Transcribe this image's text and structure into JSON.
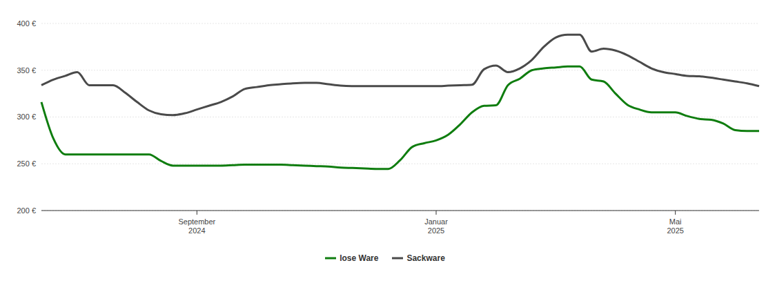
{
  "chart_data": {
    "type": "line",
    "categories": [
      null,
      null,
      null,
      null,
      null,
      null,
      null,
      null,
      null,
      null,
      null,
      null,
      null,
      "September 2024",
      null,
      null,
      null,
      null,
      null,
      null,
      null,
      null,
      null,
      null,
      null,
      null,
      null,
      null,
      null,
      null,
      null,
      null,
      null,
      "Januar 2025",
      null,
      null,
      null,
      null,
      null,
      null,
      null,
      null,
      null,
      null,
      null,
      null,
      null,
      null,
      null,
      null,
      null,
      null,
      null,
      "Mai 2025",
      null,
      null,
      null,
      null,
      null,
      null,
      null
    ],
    "series": [
      {
        "name": "lose Ware",
        "color": "#0f7d0f",
        "values": [
          316,
          277,
          260,
          260,
          260,
          260,
          260,
          260,
          260,
          260,
          253,
          248,
          248,
          248,
          248,
          248,
          248.5,
          249,
          249,
          249,
          249,
          248.5,
          248,
          247.5,
          247,
          246,
          245.5,
          245,
          244.5,
          244.5,
          254,
          268,
          272,
          275,
          281,
          292,
          305,
          312,
          312.5,
          334,
          341,
          350,
          352,
          353,
          354,
          354,
          340,
          338,
          325,
          313,
          308,
          305,
          305,
          305,
          301,
          298,
          297,
          293,
          286,
          285,
          285
        ]
      },
      {
        "name": "Sackware",
        "color": "#4a4a4a",
        "values": [
          334,
          340,
          344,
          348,
          334,
          334,
          334,
          326,
          316,
          307,
          303,
          302,
          304,
          308,
          312,
          316,
          322,
          330,
          332,
          334,
          335,
          336,
          336.5,
          336.5,
          335,
          333.5,
          333,
          333,
          333,
          333,
          333,
          333,
          333,
          333,
          333.5,
          334,
          334.5,
          351,
          355,
          348,
          352,
          361,
          375,
          385,
          388,
          388,
          370,
          373,
          371,
          366,
          359,
          352,
          348,
          346,
          344,
          343.5,
          342,
          340,
          338,
          336,
          333
        ]
      }
    ],
    "ylim": [
      200,
      400
    ],
    "yticks": [
      {
        "value": 200,
        "label": "200 €"
      },
      {
        "value": 250,
        "label": "250 €"
      },
      {
        "value": 300,
        "label": "300 €"
      },
      {
        "value": 350,
        "label": "350 €"
      },
      {
        "value": 400,
        "label": "400 €"
      }
    ],
    "grid": true,
    "legend": "bottom"
  }
}
